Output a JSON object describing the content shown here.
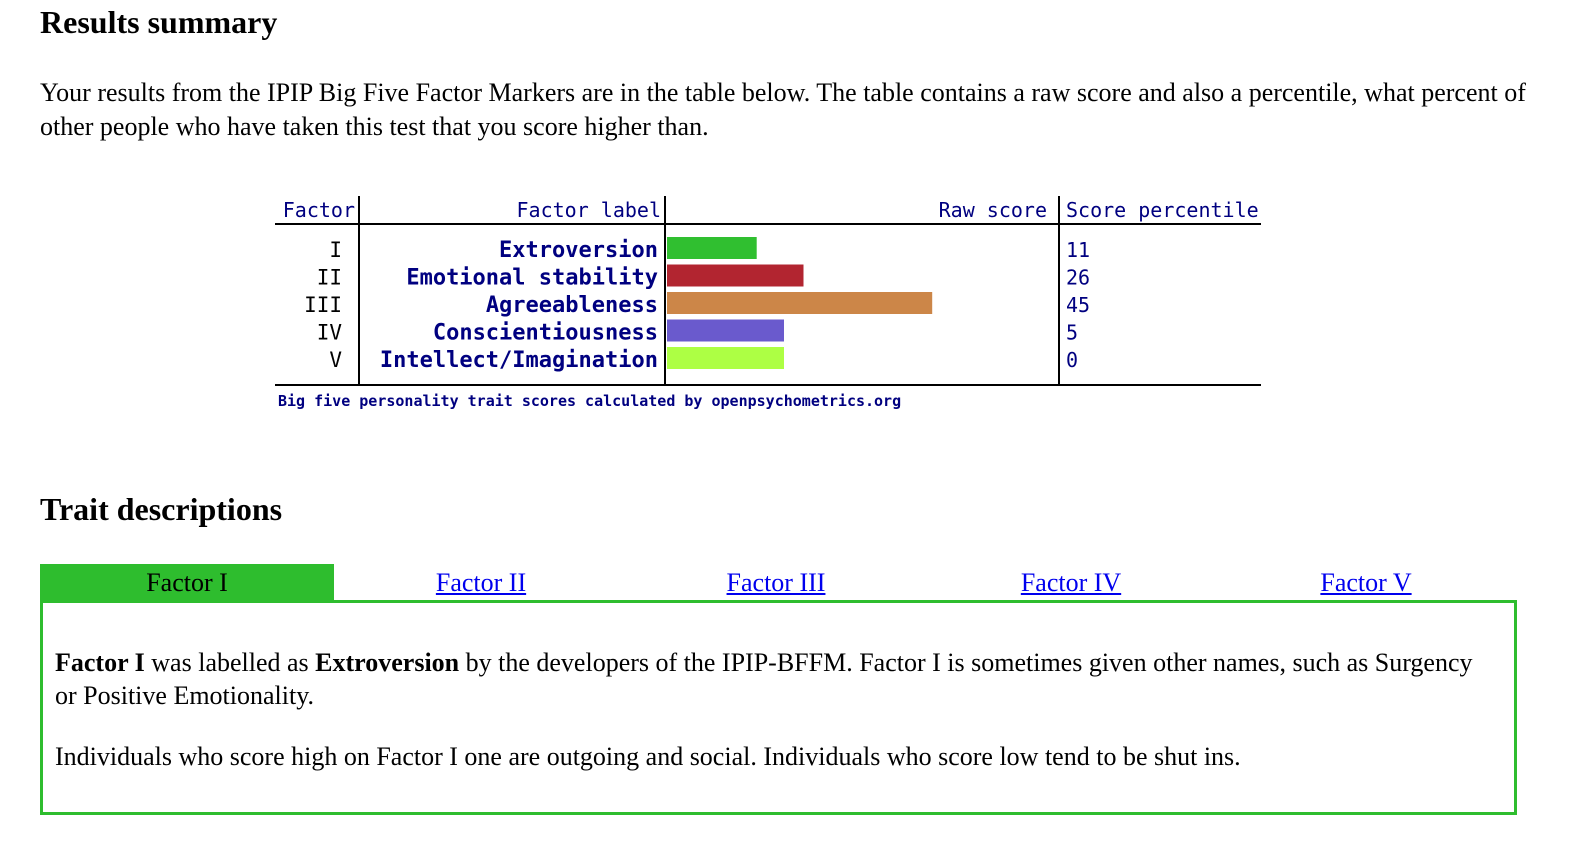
{
  "headings": {
    "results": "Results summary",
    "traits": "Trait descriptions"
  },
  "intro": "Your results from the IPIP Big Five Factor Markers are in the table below. The table contains a raw score and also a percentile, what percent of other people who have taken this test that you score higher than.",
  "chart_data": {
    "type": "bar",
    "columns": [
      "Factor",
      "Factor label",
      "Raw score",
      "Score percentile"
    ],
    "factors": [
      "I",
      "II",
      "III",
      "IV",
      "V"
    ],
    "categories": [
      "Extroversion",
      "Emotional stability",
      "Agreeableness",
      "Conscientiousness",
      "Intellect/Imagination"
    ],
    "values": [
      11,
      26,
      45,
      5,
      0
    ],
    "raw_scores_bar_relative": [
      0.23,
      0.35,
      0.68,
      0.3,
      0.3
    ],
    "colors": [
      "#30bf30",
      "#b22530",
      "#cc8648",
      "#6a5acd",
      "#adff44"
    ],
    "caption": "Big five personality trait scores calculated by openpsychometrics.org"
  },
  "tabs": [
    {
      "label": "Factor I",
      "active": true
    },
    {
      "label": "Factor II",
      "active": false
    },
    {
      "label": "Factor III",
      "active": false
    },
    {
      "label": "Factor IV",
      "active": false
    },
    {
      "label": "Factor V",
      "active": false
    }
  ],
  "panel": {
    "p1_bold1": "Factor I",
    "p1_text1": " was labelled as ",
    "p1_bold2": "Extroversion",
    "p1_text2": " by the developers of the IPIP-BFFM. Factor I is sometimes given other names, such as Surgency or Positive Emotionality.",
    "p2": "Individuals who score high on Factor I one are outgoing and social. Individuals who score low tend to be shut ins."
  },
  "colors": {
    "accent": "#2ebd2e",
    "link": "#0000ee",
    "chart_text": "#000080"
  }
}
